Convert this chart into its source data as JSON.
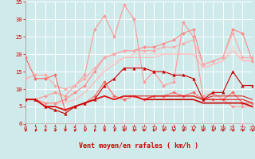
{
  "title": "",
  "xlabel": "Vent moyen/en rafales ( km/h )",
  "xlim": [
    0,
    23
  ],
  "ylim": [
    0,
    35
  ],
  "yticks": [
    0,
    5,
    10,
    15,
    20,
    25,
    30,
    35
  ],
  "xticks": [
    0,
    1,
    2,
    3,
    4,
    5,
    6,
    7,
    8,
    9,
    10,
    11,
    12,
    13,
    14,
    15,
    16,
    17,
    18,
    19,
    20,
    21,
    22,
    23
  ],
  "bg_color": "#ceeaea",
  "grid_color": "#ffffff",
  "lines": [
    {
      "x": [
        0,
        1,
        2,
        3,
        4,
        5,
        6,
        7,
        8,
        9,
        10,
        11,
        12,
        13,
        14,
        15,
        16,
        17,
        18,
        19,
        20,
        21,
        22,
        23
      ],
      "y": [
        7,
        7,
        8,
        9,
        8,
        11,
        14,
        27,
        31,
        25,
        34,
        30,
        12,
        15,
        11,
        12,
        29,
        25,
        8,
        9,
        7,
        5,
        5,
        5
      ],
      "color": "#ff9999",
      "marker": "D",
      "markersize": 2.0,
      "linewidth": 0.8,
      "zorder": 3
    },
    {
      "x": [
        0,
        1,
        2,
        3,
        4,
        5,
        6,
        7,
        8,
        9,
        10,
        11,
        12,
        13,
        14,
        15,
        16,
        17,
        18,
        19,
        20,
        21,
        22,
        23
      ],
      "y": [
        7,
        7,
        6,
        6,
        7,
        9,
        11,
        15,
        19,
        20,
        21,
        21,
        22,
        22,
        23,
        24,
        26,
        27,
        17,
        18,
        19,
        27,
        26,
        18
      ],
      "color": "#ff8888",
      "marker": "D",
      "markersize": 2.0,
      "linewidth": 0.8,
      "zorder": 3
    },
    {
      "x": [
        0,
        1,
        2,
        3,
        4,
        5,
        6,
        7,
        8,
        9,
        10,
        11,
        12,
        13,
        14,
        15,
        16,
        17,
        18,
        19,
        20,
        21,
        22,
        23
      ],
      "y": [
        13,
        14,
        14,
        11,
        10,
        11,
        13,
        16,
        19,
        20,
        21,
        21,
        21,
        21,
        22,
        22,
        23,
        24,
        17,
        18,
        19,
        26,
        19,
        19
      ],
      "color": "#ffaaaa",
      "marker": "D",
      "markersize": 2.0,
      "linewidth": 0.8,
      "zorder": 3
    },
    {
      "x": [
        0,
        1,
        2,
        3,
        4,
        5,
        6,
        7,
        8,
        9,
        10,
        11,
        12,
        13,
        14,
        15,
        16,
        17,
        18,
        19,
        20,
        21,
        22,
        23
      ],
      "y": [
        19,
        13,
        13,
        14,
        4,
        5,
        6,
        8,
        12,
        8,
        7,
        8,
        7,
        8,
        8,
        9,
        8,
        9,
        7,
        7,
        7,
        9,
        6,
        6
      ],
      "color": "#ff6666",
      "marker": "D",
      "markersize": 2.0,
      "linewidth": 0.8,
      "zorder": 3
    },
    {
      "x": [
        0,
        1,
        2,
        3,
        4,
        5,
        6,
        7,
        8,
        9,
        10,
        11,
        12,
        13,
        14,
        15,
        16,
        17,
        18,
        19,
        20,
        21,
        22,
        23
      ],
      "y": [
        7,
        7,
        6,
        6,
        6,
        7,
        9,
        12,
        16,
        18,
        19,
        20,
        20,
        20,
        20,
        20,
        20,
        20,
        16,
        17,
        18,
        22,
        18,
        19
      ],
      "color": "#ffcccc",
      "marker": null,
      "markersize": 0,
      "linewidth": 0.8,
      "zorder": 2
    },
    {
      "x": [
        0,
        1,
        2,
        3,
        4,
        5,
        6,
        7,
        8,
        9,
        10,
        11,
        12,
        13,
        14,
        15,
        16,
        17,
        18,
        19,
        20,
        21,
        22,
        23
      ],
      "y": [
        7,
        7,
        6,
        6,
        6,
        7,
        9,
        12,
        15,
        17,
        19,
        19,
        19,
        19,
        20,
        20,
        20,
        20,
        16,
        17,
        18,
        21,
        18,
        18
      ],
      "color": "#ffbbbb",
      "marker": null,
      "markersize": 0,
      "linewidth": 0.8,
      "zorder": 2
    },
    {
      "x": [
        0,
        1,
        2,
        3,
        4,
        5,
        6,
        7,
        8,
        9,
        10,
        11,
        12,
        13,
        14,
        15,
        16,
        17,
        18,
        19,
        20,
        21,
        22,
        23
      ],
      "y": [
        7,
        7,
        5,
        5,
        4,
        5,
        6,
        7,
        8,
        7,
        8,
        8,
        7,
        7,
        7,
        7,
        7,
        7,
        6,
        6,
        6,
        6,
        6,
        5
      ],
      "color": "#cc0000",
      "marker": null,
      "markersize": 0,
      "linewidth": 1.2,
      "zorder": 4
    },
    {
      "x": [
        0,
        1,
        2,
        3,
        4,
        5,
        6,
        7,
        8,
        9,
        10,
        11,
        12,
        13,
        14,
        15,
        16,
        17,
        18,
        19,
        20,
        21,
        22,
        23
      ],
      "y": [
        7,
        7,
        5,
        5,
        4,
        5,
        6,
        7,
        8,
        7,
        8,
        8,
        7,
        8,
        8,
        8,
        8,
        8,
        7,
        7,
        7,
        7,
        7,
        6
      ],
      "color": "#ee1111",
      "marker": null,
      "markersize": 0,
      "linewidth": 0.8,
      "zorder": 4
    },
    {
      "x": [
        0,
        1,
        2,
        3,
        4,
        5,
        6,
        7,
        8,
        9,
        10,
        11,
        12,
        13,
        14,
        15,
        16,
        17,
        18,
        19,
        20,
        21,
        22,
        23
      ],
      "y": [
        7,
        7,
        5,
        5,
        4,
        5,
        6,
        7,
        8,
        7,
        8,
        8,
        8,
        8,
        8,
        8,
        8,
        8,
        7,
        8,
        8,
        8,
        8,
        7
      ],
      "color": "#dd2222",
      "marker": null,
      "markersize": 0,
      "linewidth": 0.8,
      "zorder": 4
    },
    {
      "x": [
        0,
        1,
        2,
        3,
        4,
        5,
        6,
        7,
        8,
        9,
        10,
        11,
        12,
        13,
        14,
        15,
        16,
        17,
        18,
        19,
        20,
        21,
        22,
        23
      ],
      "y": [
        7,
        7,
        5,
        4,
        3,
        5,
        6,
        7,
        11,
        13,
        16,
        16,
        16,
        15,
        15,
        14,
        14,
        13,
        7,
        9,
        9,
        15,
        11,
        11
      ],
      "color": "#cc0000",
      "marker": "^",
      "markersize": 2.5,
      "linewidth": 0.8,
      "zorder": 5
    }
  ],
  "red_color": "#cc0000",
  "tick_fontsize": 5,
  "xlabel_fontsize": 6
}
